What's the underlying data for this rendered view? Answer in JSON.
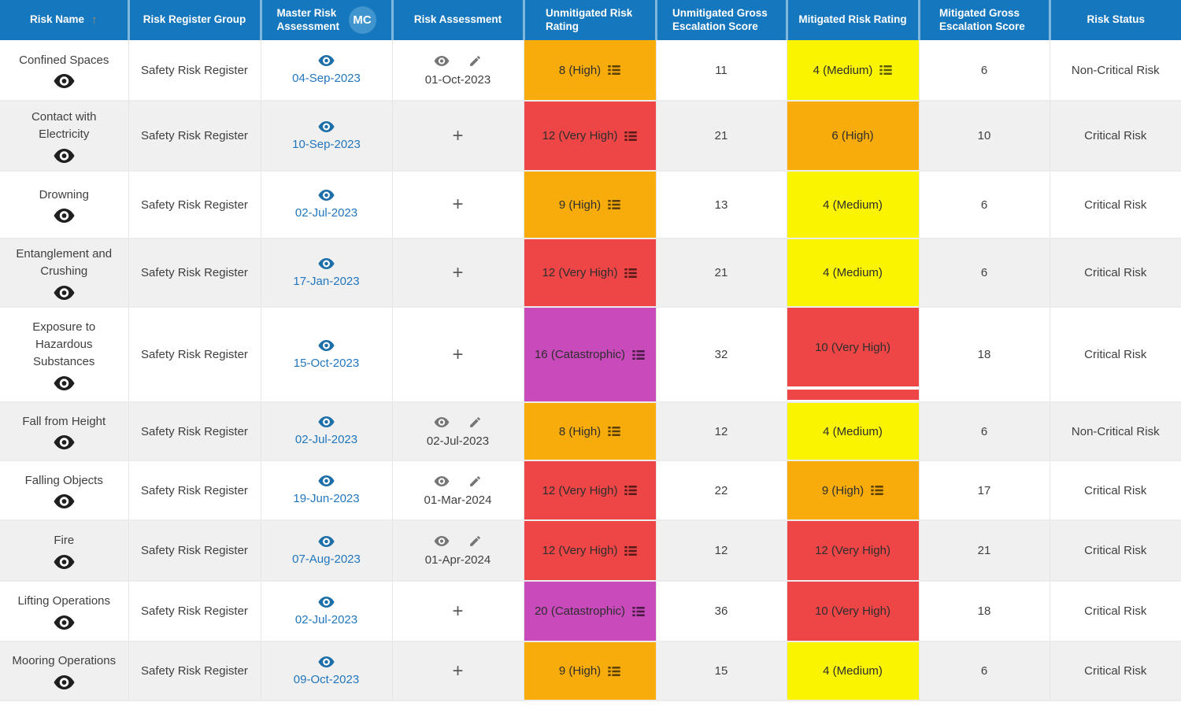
{
  "table": {
    "columns": [
      {
        "label": "Risk Name",
        "sorted": "ascending"
      },
      {
        "label": "Risk Register Group"
      },
      {
        "label": "Master Risk Assessment",
        "badge": "MC"
      },
      {
        "label": "Risk Assessment"
      },
      {
        "label": "Unmitigated Risk Rating"
      },
      {
        "label": "Unmitigated Gross Escalation Score"
      },
      {
        "label": "Mitigated Risk Rating"
      },
      {
        "label": "Mitigated Gross Escalation Score"
      },
      {
        "label": "Risk Status"
      }
    ]
  },
  "rows": [
    {
      "risk_name": "Confined Spaces",
      "risk_register_group": "Safety Risk Register",
      "master_risk_assessment_date": "04-Sep-2023",
      "risk_assessment_date": "01-Oct-2023",
      "unmitigated_rating": {
        "label": "8 (High)",
        "level": "high",
        "list_icon": true
      },
      "unmitigated_gross_escalation_score": "11",
      "mitigated_rating": {
        "label": "4 (Medium)",
        "level": "medium",
        "list_icon": true
      },
      "mitigated_gross_escalation_score": "6",
      "risk_status": "Non-Critical Risk"
    },
    {
      "risk_name": "Contact with Electricity",
      "risk_register_group": "Safety Risk Register",
      "master_risk_assessment_date": "10-Sep-2023",
      "risk_assessment_date": null,
      "unmitigated_rating": {
        "label": "12 (Very High)",
        "level": "very-high",
        "list_icon": true
      },
      "unmitigated_gross_escalation_score": "21",
      "mitigated_rating": {
        "label": "6 (High)",
        "level": "high",
        "list_icon": false
      },
      "mitigated_gross_escalation_score": "10",
      "risk_status": "Critical Risk"
    },
    {
      "risk_name": "Drowning",
      "risk_register_group": "Safety Risk Register",
      "master_risk_assessment_date": "02-Jul-2023",
      "risk_assessment_date": null,
      "unmitigated_rating": {
        "label": "9 (High)",
        "level": "high",
        "list_icon": true
      },
      "unmitigated_gross_escalation_score": "13",
      "mitigated_rating": {
        "label": "4 (Medium)",
        "level": "medium",
        "list_icon": false
      },
      "mitigated_gross_escalation_score": "6",
      "risk_status": "Critical Risk"
    },
    {
      "risk_name": "Entanglement and Crushing",
      "risk_register_group": "Safety Risk Register",
      "master_risk_assessment_date": "17-Jan-2023",
      "risk_assessment_date": null,
      "unmitigated_rating": {
        "label": "12 (Very High)",
        "level": "very-high",
        "list_icon": true
      },
      "unmitigated_gross_escalation_score": "21",
      "mitigated_rating": {
        "label": "4 (Medium)",
        "level": "medium",
        "list_icon": false
      },
      "mitigated_gross_escalation_score": "6",
      "risk_status": "Critical Risk"
    },
    {
      "risk_name": "Exposure to Hazardous Substances",
      "risk_register_group": "Safety Risk Register",
      "master_risk_assessment_date": "15-Oct-2023",
      "risk_assessment_date": null,
      "unmitigated_rating": {
        "label": "16 (Catastrophic)",
        "level": "catastrophic",
        "list_icon": true
      },
      "unmitigated_gross_escalation_score": "32",
      "mitigated_rating": {
        "label": "10 (Very High)",
        "level": "very-high",
        "list_icon": false,
        "split_block": true
      },
      "mitigated_gross_escalation_score": "18",
      "risk_status": "Critical Risk"
    },
    {
      "risk_name": "Fall from Height",
      "risk_register_group": "Safety Risk Register",
      "master_risk_assessment_date": "02-Jul-2023",
      "risk_assessment_date": "02-Jul-2023",
      "unmitigated_rating": {
        "label": "8 (High)",
        "level": "high",
        "list_icon": true
      },
      "unmitigated_gross_escalation_score": "12",
      "mitigated_rating": {
        "label": "4 (Medium)",
        "level": "medium",
        "list_icon": false
      },
      "mitigated_gross_escalation_score": "6",
      "risk_status": "Non-Critical Risk"
    },
    {
      "risk_name": "Falling Objects",
      "risk_register_group": "Safety Risk Register",
      "master_risk_assessment_date": "19-Jun-2023",
      "risk_assessment_date": "01-Mar-2024",
      "unmitigated_rating": {
        "label": "12 (Very High)",
        "level": "very-high",
        "list_icon": true
      },
      "unmitigated_gross_escalation_score": "22",
      "mitigated_rating": {
        "label": "9 (High)",
        "level": "high",
        "list_icon": true
      },
      "mitigated_gross_escalation_score": "17",
      "risk_status": "Critical Risk"
    },
    {
      "risk_name": "Fire",
      "risk_register_group": "Safety Risk Register",
      "master_risk_assessment_date": "07-Aug-2023",
      "risk_assessment_date": "01-Apr-2024",
      "unmitigated_rating": {
        "label": "12 (Very High)",
        "level": "very-high",
        "list_icon": true
      },
      "unmitigated_gross_escalation_score": "12",
      "mitigated_rating": {
        "label": "12 (Very High)",
        "level": "very-high",
        "list_icon": false
      },
      "mitigated_gross_escalation_score": "21",
      "risk_status": "Critical Risk"
    },
    {
      "risk_name": "Lifting Operations",
      "risk_register_group": "Safety Risk Register",
      "master_risk_assessment_date": "02-Jul-2023",
      "risk_assessment_date": null,
      "unmitigated_rating": {
        "label": "20 (Catastrophic)",
        "level": "catastrophic",
        "list_icon": true
      },
      "unmitigated_gross_escalation_score": "36",
      "mitigated_rating": {
        "label": "10 (Very High)",
        "level": "very-high",
        "list_icon": false
      },
      "mitigated_gross_escalation_score": "18",
      "risk_status": "Critical Risk"
    },
    {
      "risk_name": "Mooring Operations",
      "risk_register_group": "Safety Risk Register",
      "master_risk_assessment_date": "09-Oct-2023",
      "risk_assessment_date": null,
      "unmitigated_rating": {
        "label": "9 (High)",
        "level": "high",
        "list_icon": true
      },
      "unmitigated_gross_escalation_score": "15",
      "mitigated_rating": {
        "label": "4 (Medium)",
        "level": "medium",
        "list_icon": false
      },
      "mitigated_gross_escalation_score": "6",
      "risk_status": "Critical Risk"
    }
  ],
  "colors": {
    "header_background": "#1577BD",
    "badge_background": "#4095CE",
    "link_blue": "#2276BD",
    "rating_high": "#F8AC0B",
    "rating_medium": "#FBF400",
    "rating_very_high": "#EE4646",
    "rating_catastrophic": "#C94ABB",
    "row_alternate_background": "#F0F0F0"
  }
}
